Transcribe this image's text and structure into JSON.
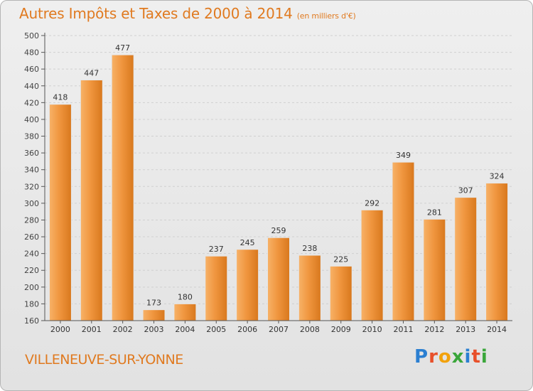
{
  "title": "Autres Impôts et Taxes de 2000 à 2014",
  "subtitle": "(en milliers d'€)",
  "place": "VILLENEUVE-SUR-YONNE",
  "logo": {
    "letters": [
      "P",
      "r",
      "o",
      "x",
      "i",
      "t",
      "i"
    ],
    "colors": [
      "#2b7fd1",
      "#e8502a",
      "#f2a20c",
      "#3aa63a",
      "#2b7fd1",
      "#e8502a",
      "#3aa63a"
    ]
  },
  "colors": {
    "bar": "#f0963f",
    "bar_light": "#f7b268",
    "bar_dark": "#d8781d",
    "accent": "#e07a20"
  },
  "chart_data": {
    "type": "bar",
    "categories": [
      "2000",
      "2001",
      "2002",
      "2003",
      "2004",
      "2005",
      "2006",
      "2007",
      "2008",
      "2009",
      "2010",
      "2011",
      "2012",
      "2013",
      "2014"
    ],
    "values": [
      418,
      447,
      477,
      173,
      180,
      237,
      245,
      259,
      238,
      225,
      292,
      349,
      281,
      307,
      324
    ],
    "ylim": [
      160,
      500
    ],
    "yticks": [
      160,
      180,
      200,
      220,
      240,
      260,
      280,
      300,
      320,
      340,
      360,
      380,
      400,
      420,
      440,
      460,
      480,
      500
    ],
    "grid": true,
    "xlabel": "",
    "ylabel": ""
  }
}
